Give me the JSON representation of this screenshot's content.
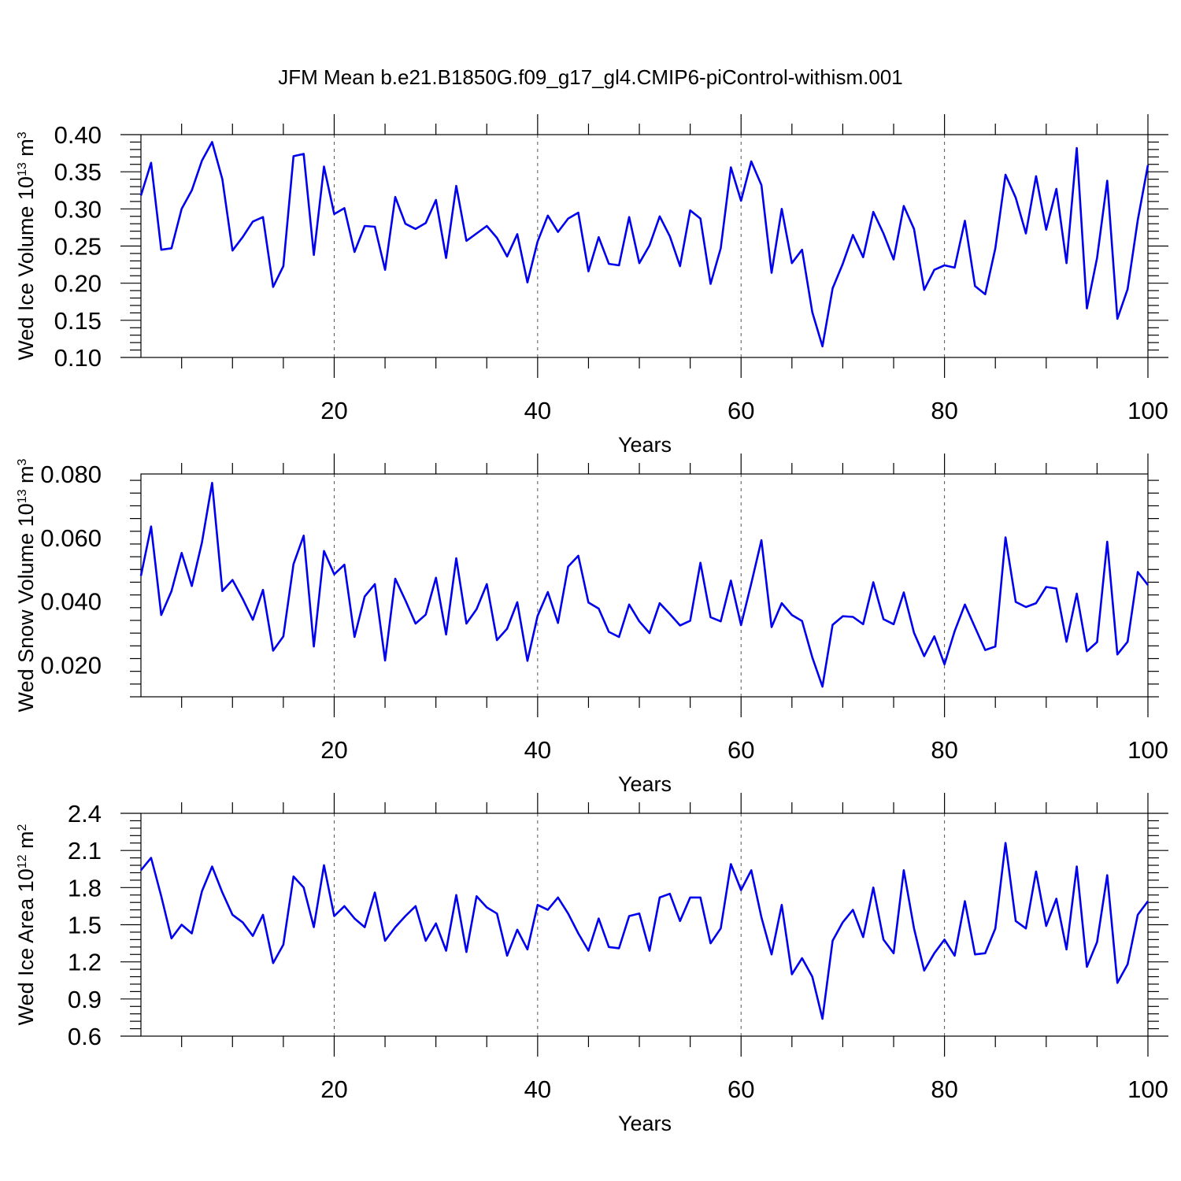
{
  "title": "JFM Mean b.e21.B1850G.f09_g17_gl4.CMIP6-piControl-withism.001",
  "colors": {
    "series": "#0000ee",
    "axis": "#000000",
    "grid": "#555555"
  },
  "chart_data": [
    {
      "type": "line",
      "ylabel": "Wed Ice Volume 10",
      "ylabel_exp": "13",
      "ylabel_unit": " m",
      "ylabel_unit_exp": "3",
      "xlabel": "Years",
      "xlim": [
        1,
        100
      ],
      "ylim": [
        0.1,
        0.4
      ],
      "x_ticks": [
        20,
        40,
        60,
        80,
        100
      ],
      "x_tick_labels": [
        "20",
        "40",
        "60",
        "80",
        "100"
      ],
      "y_ticks": [
        0.1,
        0.15,
        0.2,
        0.25,
        0.3,
        0.35,
        0.4
      ],
      "y_tick_labels": [
        "0.10",
        "0.15",
        "0.20",
        "0.25",
        "0.30",
        "0.35",
        "0.40"
      ],
      "grid_x": [
        20,
        40,
        60,
        80
      ],
      "values": [
        0.318,
        0.362,
        0.245,
        0.247,
        0.3,
        0.325,
        0.365,
        0.39,
        0.34,
        0.244,
        0.262,
        0.283,
        0.289,
        0.195,
        0.223,
        0.371,
        0.374,
        0.238,
        0.357,
        0.293,
        0.301,
        0.242,
        0.277,
        0.276,
        0.218,
        0.316,
        0.28,
        0.273,
        0.281,
        0.312,
        0.234,
        0.331,
        0.257,
        0.267,
        0.277,
        0.261,
        0.236,
        0.266,
        0.201,
        0.256,
        0.291,
        0.269,
        0.287,
        0.295,
        0.216,
        0.262,
        0.226,
        0.224,
        0.289,
        0.227,
        0.251,
        0.29,
        0.263,
        0.223,
        0.298,
        0.287,
        0.199,
        0.247,
        0.356,
        0.311,
        0.364,
        0.332,
        0.214,
        0.3,
        0.227,
        0.245,
        0.161,
        0.115,
        0.193,
        0.226,
        0.265,
        0.235,
        0.296,
        0.267,
        0.232,
        0.304,
        0.273,
        0.191,
        0.218,
        0.224,
        0.221,
        0.284,
        0.196,
        0.185,
        0.247,
        0.346,
        0.315,
        0.267,
        0.344,
        0.272,
        0.327,
        0.227,
        0.382,
        0.166,
        0.234,
        0.338,
        0.152,
        0.192,
        0.285,
        0.359
      ]
    },
    {
      "type": "line",
      "ylabel": "Wed Snow Volume 10",
      "ylabel_exp": "13",
      "ylabel_unit": " m",
      "ylabel_unit_exp": "3",
      "xlabel": "Years",
      "xlim": [
        1,
        100
      ],
      "ylim": [
        0.01,
        0.08
      ],
      "x_ticks": [
        20,
        40,
        60,
        80,
        100
      ],
      "x_tick_labels": [
        "20",
        "40",
        "60",
        "80",
        "100"
      ],
      "y_ticks": [
        0.02,
        0.04,
        0.06,
        0.08
      ],
      "y_tick_labels": [
        "0.020",
        "0.040",
        "0.060",
        "0.080"
      ],
      "grid_x": [
        20,
        40,
        60,
        80
      ],
      "values": [
        0.048,
        0.0635,
        0.0357,
        0.0432,
        0.0552,
        0.0448,
        0.0585,
        0.0772,
        0.0432,
        0.0467,
        0.0408,
        0.0342,
        0.0436,
        0.0245,
        0.029,
        0.0517,
        0.0606,
        0.0258,
        0.0558,
        0.0485,
        0.0515,
        0.0288,
        0.0415,
        0.0454,
        0.0214,
        0.0471,
        0.0403,
        0.033,
        0.0358,
        0.0474,
        0.0296,
        0.0535,
        0.033,
        0.0375,
        0.0454,
        0.0278,
        0.0314,
        0.0397,
        0.0213,
        0.0354,
        0.0429,
        0.0332,
        0.0509,
        0.0543,
        0.0396,
        0.0377,
        0.0304,
        0.0288,
        0.039,
        0.0337,
        0.03,
        0.0394,
        0.036,
        0.0324,
        0.0339,
        0.0521,
        0.035,
        0.0337,
        0.0465,
        0.0325,
        0.0456,
        0.0592,
        0.0319,
        0.0394,
        0.0357,
        0.0338,
        0.0224,
        0.0132,
        0.0326,
        0.0353,
        0.0351,
        0.0328,
        0.046,
        0.0344,
        0.0328,
        0.0428,
        0.0301,
        0.0228,
        0.029,
        0.0202,
        0.0306,
        0.039,
        0.0318,
        0.0247,
        0.0258,
        0.0601,
        0.0398,
        0.0382,
        0.0394,
        0.0445,
        0.044,
        0.0273,
        0.0424,
        0.0243,
        0.0272,
        0.0587,
        0.0233,
        0.0273,
        0.0492,
        0.0451
      ]
    },
    {
      "type": "line",
      "ylabel": "Wed Ice Area 10",
      "ylabel_exp": "12",
      "ylabel_unit": " m",
      "ylabel_unit_exp": "2",
      "xlabel": "Years",
      "xlim": [
        1,
        100
      ],
      "ylim": [
        0.6,
        2.4
      ],
      "x_ticks": [
        20,
        40,
        60,
        80,
        100
      ],
      "x_tick_labels": [
        "20",
        "40",
        "60",
        "80",
        "100"
      ],
      "y_ticks": [
        0.6,
        0.9,
        1.2,
        1.5,
        1.8,
        2.1,
        2.4
      ],
      "y_tick_labels": [
        "0.6",
        "0.9",
        "1.2",
        "1.5",
        "1.8",
        "2.1",
        "2.4"
      ],
      "grid_x": [
        20,
        40,
        60,
        80
      ],
      "values": [
        1.94,
        2.04,
        1.73,
        1.39,
        1.5,
        1.43,
        1.77,
        1.97,
        1.76,
        1.58,
        1.52,
        1.41,
        1.58,
        1.19,
        1.34,
        1.89,
        1.8,
        1.48,
        1.98,
        1.57,
        1.65,
        1.55,
        1.48,
        1.76,
        1.37,
        1.48,
        1.57,
        1.65,
        1.37,
        1.51,
        1.29,
        1.74,
        1.28,
        1.73,
        1.64,
        1.59,
        1.25,
        1.46,
        1.3,
        1.66,
        1.62,
        1.72,
        1.59,
        1.43,
        1.29,
        1.55,
        1.32,
        1.31,
        1.57,
        1.59,
        1.29,
        1.72,
        1.75,
        1.53,
        1.72,
        1.72,
        1.35,
        1.47,
        1.99,
        1.78,
        1.94,
        1.56,
        1.26,
        1.66,
        1.1,
        1.23,
        1.08,
        0.74,
        1.37,
        1.52,
        1.62,
        1.4,
        1.8,
        1.38,
        1.27,
        1.94,
        1.47,
        1.13,
        1.27,
        1.38,
        1.25,
        1.69,
        1.26,
        1.27,
        1.47,
        2.16,
        1.53,
        1.47,
        1.93,
        1.49,
        1.71,
        1.3,
        1.97,
        1.16,
        1.36,
        1.9,
        1.03,
        1.18,
        1.58,
        1.69
      ]
    }
  ]
}
